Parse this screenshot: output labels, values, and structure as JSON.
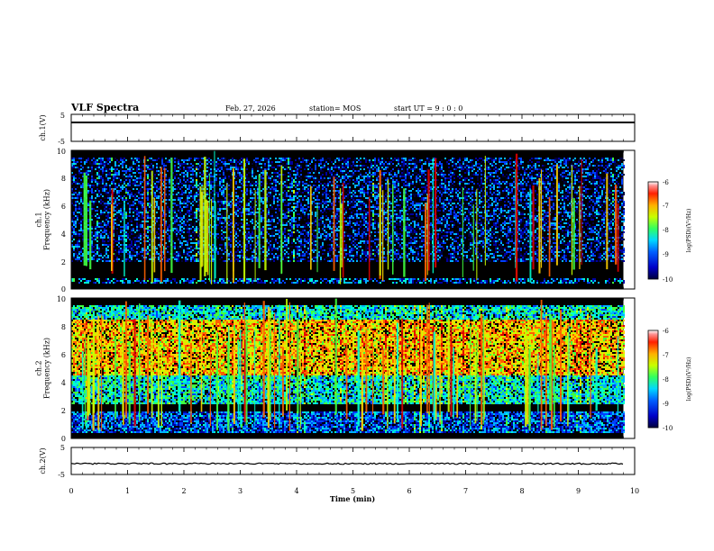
{
  "header": {
    "title": "VLF Spectra",
    "date": "Feb. 27, 2026",
    "station": "station= MOS",
    "start": "start  UT  =   9 : 0  : 0"
  },
  "panels": {
    "ch1_volt": {
      "ylabel": "ch.1(V)",
      "yticks": [
        "5",
        "-5"
      ]
    },
    "ch1_spec": {
      "ylabel": "ch.1\nFrequency (kHz)",
      "yticks": [
        "0",
        "2",
        "4",
        "6",
        "8",
        "10"
      ]
    },
    "ch2_spec": {
      "ylabel": "ch.2\nFrequency (kHz)",
      "yticks": [
        "0",
        "2",
        "4",
        "6",
        "8",
        "10"
      ]
    },
    "ch2_volt": {
      "ylabel": "ch.2(V)",
      "yticks": [
        "5",
        "-5"
      ]
    }
  },
  "colorbar": {
    "label": "log(PSD)(V²/Hz)",
    "ticks": [
      "-6",
      "-7",
      "-8",
      "-9",
      "-10"
    ]
  },
  "xaxis": {
    "label": "Time (min)",
    "ticks": [
      "0",
      "1",
      "2",
      "3",
      "4",
      "5",
      "6",
      "7",
      "8",
      "9",
      "10"
    ]
  },
  "colors": {
    "cmap": [
      "#00003c",
      "#0000a0",
      "#0040ff",
      "#00b4ff",
      "#00ffd0",
      "#40ff40",
      "#c8ff00",
      "#ffd000",
      "#ff6000",
      "#e00000"
    ],
    "background": "#000000"
  },
  "chart_data": [
    {
      "type": "line",
      "title": "ch.1(V)",
      "x_range": [
        0,
        10
      ],
      "ylim": [
        -5,
        5
      ],
      "series": [
        {
          "name": "ch.1(V)",
          "level": 2.0
        }
      ]
    },
    {
      "type": "heatmap",
      "title": "ch.1 Frequency (kHz)",
      "x_range_min": [
        0,
        9.8
      ],
      "ylim_kHz": [
        0,
        10
      ],
      "colorbar_log_psd": [
        -10,
        -6
      ],
      "bands_kHz": [
        {
          "range": [
            2,
            9.5
          ],
          "typical_log_psd": -9.2
        },
        {
          "range": [
            0.4,
            0.8
          ],
          "typical_log_psd": -8.8
        }
      ],
      "sferic_count_approx": 70
    },
    {
      "type": "heatmap",
      "title": "ch.2 Frequency (kHz)",
      "x_range_min": [
        0,
        9.8
      ],
      "ylim_kHz": [
        0,
        10
      ],
      "colorbar_log_psd": [
        -10,
        -6
      ],
      "bands_kHz": [
        {
          "range": [
            4.5,
            8.5
          ],
          "typical_log_psd": -7.0
        },
        {
          "range": [
            2.5,
            9.5
          ],
          "typical_log_psd": -8.3
        },
        {
          "range": [
            0.5,
            2.0
          ],
          "typical_log_psd": -9.0
        }
      ],
      "sferic_count_approx": 90
    },
    {
      "type": "line",
      "title": "ch.2(V)",
      "x_range": [
        0,
        10
      ],
      "ylim": [
        -5,
        5
      ],
      "series": [
        {
          "name": "ch.2(V)",
          "level": -1.0
        }
      ]
    }
  ]
}
